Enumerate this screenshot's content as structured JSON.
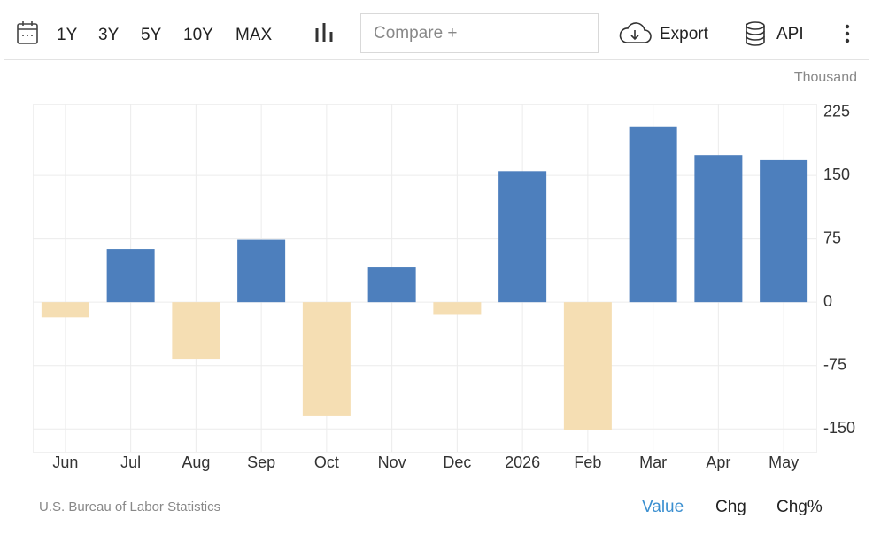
{
  "toolbar": {
    "ranges": [
      "1Y",
      "3Y",
      "5Y",
      "10Y",
      "MAX"
    ],
    "compare": "Compare +",
    "export": "Export",
    "api": "API"
  },
  "chart_data": {
    "type": "bar",
    "unit": "Thousand",
    "categories": [
      "Jun",
      "Jul",
      "Aug",
      "Sep",
      "Oct",
      "Nov",
      "Dec",
      "2026",
      "Feb",
      "Mar",
      "Apr",
      "May"
    ],
    "values": [
      -18,
      63,
      -67,
      74,
      -135,
      41,
      -15,
      155,
      -151,
      208,
      174,
      168
    ],
    "color_positive": "#4d7fbd",
    "color_negative": "#f5deb3",
    "ylim": [
      -177,
      235
    ],
    "yticks": [
      -150,
      -75,
      0,
      75,
      150,
      225
    ],
    "grid": true,
    "source": "U.S. Bureau of Labor Statistics"
  },
  "footer": {
    "tabs": [
      "Value",
      "Chg",
      "Chg%"
    ]
  }
}
